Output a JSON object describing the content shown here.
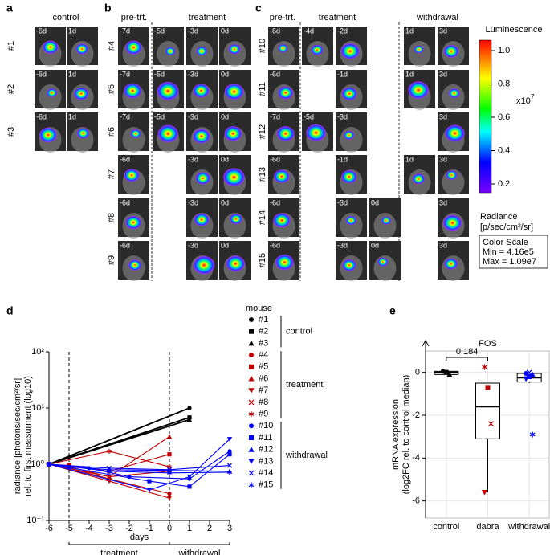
{
  "panels": {
    "a": {
      "letter": "a",
      "label_color": "#000000",
      "groups": [
        "control"
      ],
      "rows": [
        {
          "label": "#1",
          "cells": [
            "-6d",
            "1d"
          ]
        },
        {
          "label": "#2",
          "cells": [
            "-6d",
            "1d"
          ]
        },
        {
          "label": "#3",
          "cells": [
            "-6d",
            "1d"
          ]
        }
      ]
    },
    "b": {
      "letter": "b",
      "label_color": "#c00000",
      "groups": [
        "pre-trt.",
        "treatment"
      ],
      "rows": [
        {
          "label": "#4",
          "cells": [
            "-7d",
            "-5d",
            "-3d",
            "0d"
          ]
        },
        {
          "label": "#5",
          "cells": [
            "-7d",
            "-5d",
            "-3d",
            "0d"
          ]
        },
        {
          "label": "#6",
          "cells": [
            "-7d",
            "-5d",
            "-3d",
            "0d"
          ]
        },
        {
          "label": "#7",
          "cells": [
            "-6d",
            null,
            "-3d",
            "0d"
          ]
        },
        {
          "label": "#8",
          "cells": [
            "-6d",
            null,
            "-3d",
            "0d"
          ]
        },
        {
          "label": "#9",
          "cells": [
            "-6d",
            null,
            "-3d",
            "0d"
          ]
        }
      ]
    },
    "c": {
      "letter": "c",
      "label_color": "#0000ff",
      "groups": [
        "pre-trt.",
        "treatment",
        "withdrawal"
      ],
      "rows": [
        {
          "label": "#10",
          "cells": [
            "-6d",
            "-4d",
            "-2d",
            null,
            "1d",
            "3d"
          ]
        },
        {
          "label": "#11",
          "cells": [
            "-6d",
            null,
            "-1d",
            null,
            "1d",
            "3d"
          ]
        },
        {
          "label": "#12",
          "cells": [
            "-7d",
            "-5d",
            "-3d",
            null,
            null,
            "3d"
          ]
        },
        {
          "label": "#13",
          "cells": [
            "-6d",
            null,
            "-1d",
            null,
            "1d",
            "3d"
          ]
        },
        {
          "label": "#14",
          "cells": [
            "-6d",
            null,
            "-3d",
            "0d",
            null,
            "3d"
          ]
        },
        {
          "label": "#15",
          "cells": [
            "-6d",
            null,
            "-3d",
            "0d",
            null,
            "3d"
          ]
        }
      ]
    }
  },
  "colorbar": {
    "title": "Luminescence",
    "tick_labels": [
      "1.0",
      "0.8",
      "0.6",
      "0.4",
      "0.2"
    ],
    "multiplier": "x10",
    "exponent": "7",
    "unit_lines": [
      "Radiance",
      "[p/sec/cm²/sr]"
    ],
    "scale_box": [
      "Color Scale",
      "Min = 4.16e5",
      "Max = 1.09e7"
    ]
  },
  "chart_data": [
    {
      "type": "line",
      "letter": "d",
      "log_y": true,
      "xlabel": "days",
      "ylabel": [
        "radiance [photons/sec/cm²/sr]",
        "rel. to first measurment (log10)"
      ],
      "xlim": [
        -6,
        3
      ],
      "xticks": [
        -6,
        -5,
        -4,
        -3,
        -2,
        -1,
        0,
        1,
        2,
        3
      ],
      "ylim": [
        0.1,
        100
      ],
      "yticks": [
        {
          "value": 0.1,
          "label": "10⁻¹"
        },
        {
          "value": 1,
          "label": "10⁰"
        },
        {
          "value": 10,
          "label": "10¹"
        },
        {
          "value": 100,
          "label": "10²"
        }
      ],
      "vlines": [
        -5,
        0
      ],
      "phases": [
        {
          "label": "treatment",
          "start": -5,
          "end": 0
        },
        {
          "label": "withdrawal",
          "start": 0,
          "end": 3
        }
      ],
      "legend_title": "mouse",
      "legend_groups": [
        {
          "label": "control",
          "color": "#000000"
        },
        {
          "label": "treatment",
          "color": "#c00000"
        },
        {
          "label": "withdrawal",
          "color": "#0000ff"
        }
      ],
      "series": [
        {
          "name": "#1",
          "color": "#000000",
          "marker": "circle",
          "x": [
            -6,
            1
          ],
          "values": [
            1,
            10
          ]
        },
        {
          "name": "#2",
          "color": "#000000",
          "marker": "square",
          "x": [
            -6,
            1
          ],
          "values": [
            1,
            6.8
          ]
        },
        {
          "name": "#3",
          "color": "#000000",
          "marker": "triangle-up",
          "x": [
            -6,
            1
          ],
          "values": [
            1,
            6.2
          ]
        },
        {
          "name": "#4",
          "color": "#c00000",
          "marker": "circle",
          "x": [
            -6,
            -5,
            -3,
            0
          ],
          "values": [
            1,
            0.85,
            0.55,
            0.3
          ]
        },
        {
          "name": "#5",
          "color": "#c00000",
          "marker": "square",
          "x": [
            -6,
            -5,
            -3,
            0
          ],
          "values": [
            1,
            0.95,
            0.75,
            1.5
          ]
        },
        {
          "name": "#6",
          "color": "#c00000",
          "marker": "triangle-up",
          "x": [
            -6,
            -5,
            -3,
            0
          ],
          "values": [
            1,
            0.9,
            0.6,
            3.1
          ]
        },
        {
          "name": "#7",
          "color": "#c00000",
          "marker": "triangle-down",
          "x": [
            -6,
            -3,
            0
          ],
          "values": [
            1,
            0.5,
            0.25
          ]
        },
        {
          "name": "#8",
          "color": "#c00000",
          "marker": "x",
          "x": [
            -6,
            -3,
            0
          ],
          "values": [
            1,
            0.6,
            0.75
          ]
        },
        {
          "name": "#9",
          "color": "#c00000",
          "marker": "asterisk",
          "x": [
            -6,
            -3,
            0
          ],
          "values": [
            1,
            1.7,
            0.9
          ]
        },
        {
          "name": "#10",
          "color": "#0000ff",
          "marker": "circle",
          "x": [
            -6,
            -4,
            -2,
            1,
            3
          ],
          "values": [
            1,
            0.85,
            0.6,
            0.55,
            1.7
          ]
        },
        {
          "name": "#11",
          "color": "#0000ff",
          "marker": "square",
          "x": [
            -6,
            -1,
            1,
            3
          ],
          "values": [
            1,
            0.5,
            0.4,
            1.5
          ]
        },
        {
          "name": "#12",
          "color": "#0000ff",
          "marker": "triangle-up",
          "x": [
            -6,
            -5,
            -3,
            3
          ],
          "values": [
            1,
            0.9,
            0.8,
            0.75
          ]
        },
        {
          "name": "#13",
          "color": "#0000ff",
          "marker": "triangle-down",
          "x": [
            -6,
            -1,
            1,
            3
          ],
          "values": [
            1,
            0.35,
            0.6,
            2.8
          ]
        },
        {
          "name": "#14",
          "color": "#0000ff",
          "marker": "x",
          "x": [
            -6,
            -3,
            0,
            3
          ],
          "values": [
            1,
            0.85,
            0.8,
            0.95
          ]
        },
        {
          "name": "#15",
          "color": "#0000ff",
          "marker": "asterisk",
          "x": [
            -6,
            -3,
            0,
            3
          ],
          "values": [
            1,
            0.75,
            0.7,
            0.72
          ]
        }
      ]
    },
    {
      "type": "box",
      "letter": "e",
      "title": "FOS",
      "ylabel": [
        "mRNA expression",
        "(log2FC rel. to control median)"
      ],
      "categories": [
        "control",
        "dabra",
        "withdrawal"
      ],
      "ylim": [
        -6.8,
        1.0
      ],
      "yticks": [
        0,
        -2,
        -4,
        -6
      ],
      "grid": true,
      "boxes": [
        {
          "whislo": -0.1,
          "q1": -0.1,
          "median": 0,
          "q3": 0.05,
          "whishi": 0.05
        },
        {
          "whislo": -5.6,
          "q1": -3.1,
          "median": -1.6,
          "q3": -0.5,
          "whishi": -0.5
        },
        {
          "whislo": -0.5,
          "q1": -0.45,
          "median": -0.25,
          "q3": -0.05,
          "whishi": 0.0
        }
      ],
      "point_colors": [
        "#000000",
        "#c00000",
        "#0000ff"
      ],
      "points": [
        [
          0.05,
          0.0,
          -0.1
        ],
        [
          0.25,
          -0.7,
          -2.4,
          -5.6
        ],
        [
          -0.05,
          -0.2,
          -0.1,
          -0.3,
          0.0,
          -2.9
        ]
      ],
      "point_markers": [
        [
          "circle",
          "square",
          "triangle-up"
        ],
        [
          "asterisk",
          "square",
          "x",
          "triangle-down"
        ],
        [
          "circle",
          "square",
          "triangle-up",
          "triangle-down",
          "x",
          "asterisk"
        ]
      ],
      "comparison": {
        "text": "0.184"
      }
    }
  ]
}
